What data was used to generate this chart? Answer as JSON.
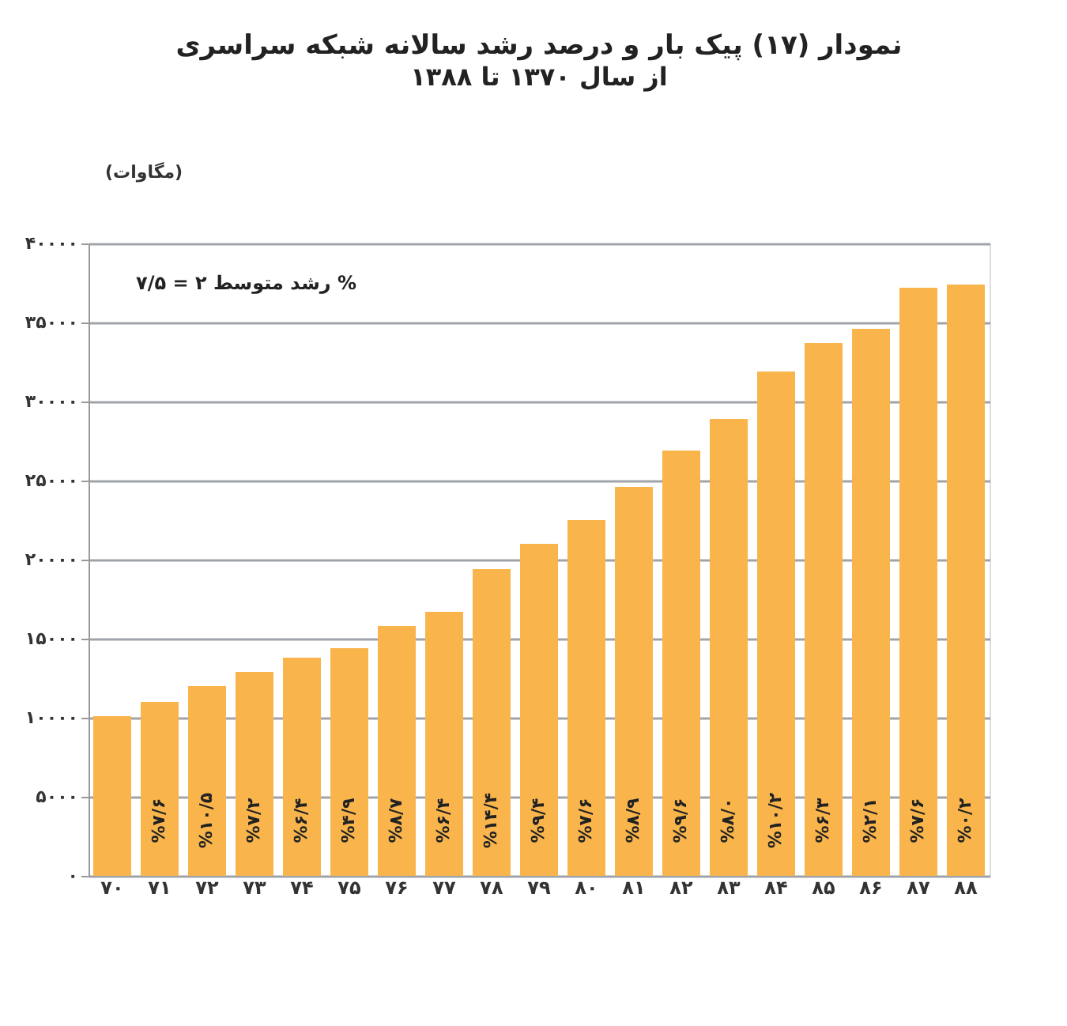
{
  "chart_data": {
    "type": "bar",
    "title": "نمودار (۱۷) پیک بار و درصد رشد سالانه شبکه سراسری",
    "subtitle": "از سال ۱۳۷۰ تا ۱۳۸۸",
    "ylabel": "(مگاوات)",
    "annotations": [
      "رشد متوسط ۲ = ۷/۵ %",
      "%۷/۶",
      "%۱۰/۵",
      "%۷/۲",
      "%۶/۴",
      "%۴/۹",
      "%۸/۷",
      "%۶/۴",
      "%۱۴/۴",
      "%۹/۴",
      "%۷/۶",
      "%۸/۹",
      "%۹/۶",
      "%۸/۰",
      "%۱۰/۲",
      "%۶/۳",
      "%۲/۱",
      "%۷/۶",
      "%۰/۲"
    ],
    "categories": [
      "۷۰",
      "۷۱",
      "۷۲",
      "۷۳",
      "۷۴",
      "۷۵",
      "۷۶",
      "۷۷",
      "۷۸",
      "۷۹",
      "۸۰",
      "۸۱",
      "۸۲",
      "۸۳",
      "۸۴",
      "۸۵",
      "۸۶",
      "۸۷",
      "۸۸"
    ],
    "values": [
      10100,
      11000,
      12000,
      12900,
      13800,
      14400,
      15800,
      16700,
      19400,
      21000,
      22500,
      24600,
      26900,
      28900,
      31900,
      33700,
      34600,
      37200,
      37400
    ],
    "color": "#f9b54c",
    "ylim": [
      0,
      40000
    ],
    "yticks": [
      {
        "value": 0,
        "label": "۰"
      },
      {
        "value": 5000,
        "label": "۵۰۰۰"
      },
      {
        "value": 10000,
        "label": "۱۰۰۰۰"
      },
      {
        "value": 15000,
        "label": "۱۵۰۰۰"
      },
      {
        "value": 20000,
        "label": "۲۰۰۰۰"
      },
      {
        "value": 25000,
        "label": "۲۵۰۰۰"
      },
      {
        "value": 30000,
        "label": "۳۰۰۰۰"
      },
      {
        "value": 35000,
        "label": "۳۵۰۰۰"
      },
      {
        "value": 40000,
        "label": "۴۰۰۰۰"
      }
    ],
    "grid": "y"
  }
}
